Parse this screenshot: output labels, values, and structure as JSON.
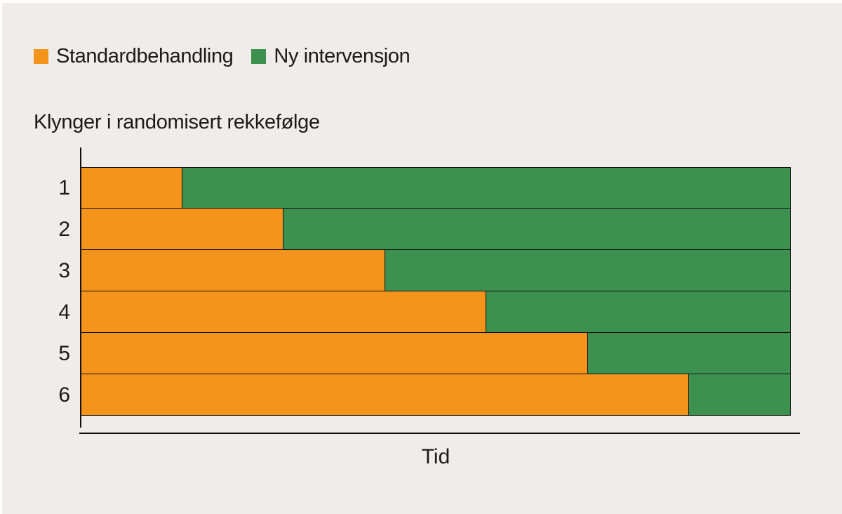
{
  "colors": {
    "background": "#EFECE9",
    "axis": "#111111",
    "text": "#1A1A1A",
    "standard_treatment": "#F5941D",
    "new_intervention": "#3C914E"
  },
  "legend": {
    "items": [
      {
        "label": "Standardbehandling",
        "color": "#F5941D"
      },
      {
        "label": "Ny intervensjon",
        "color": "#3C914E"
      }
    ]
  },
  "chart_data": {
    "type": "bar",
    "variant": "horizontal-stacked",
    "title": "Klynger i randomisert rekkefølge",
    "xlabel": "Tid",
    "ylabel": "",
    "categories": [
      "1",
      "2",
      "3",
      "4",
      "5",
      "6"
    ],
    "x_axis": {
      "min": 0,
      "max": 7,
      "tick_labels": [],
      "unit": "periods"
    },
    "grid": false,
    "legend_position": "top-left",
    "series": [
      {
        "name": "Standardbehandling",
        "color": "#F5941D",
        "values": [
          1,
          2,
          3,
          4,
          5,
          6
        ]
      },
      {
        "name": "Ny intervensjon",
        "color": "#3C914E",
        "values": [
          6,
          5,
          4,
          3,
          2,
          1
        ]
      }
    ]
  }
}
